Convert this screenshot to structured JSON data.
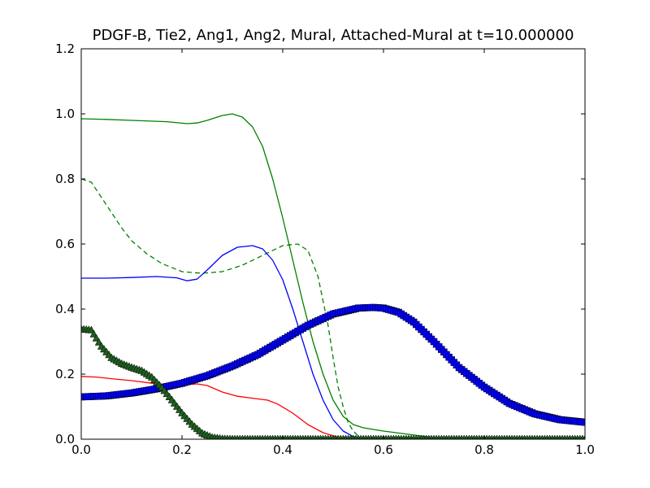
{
  "chart_data": {
    "type": "line",
    "title": "PDGF-B, Tie2, Ang1, Ang2, Mural, Attached-Mural at t=10.000000",
    "xlabel": "",
    "ylabel": "",
    "xlim": [
      0.0,
      1.0
    ],
    "ylim": [
      0.0,
      1.2
    ],
    "xticks": [
      "0.0",
      "0.2",
      "0.4",
      "0.6",
      "0.8",
      "1.0"
    ],
    "yticks": [
      "0.0",
      "0.2",
      "0.4",
      "0.6",
      "0.8",
      "1.0",
      "1.2"
    ],
    "grid": false,
    "legend": "none",
    "series": [
      {
        "color": "#008000",
        "style": "solid",
        "marker": "none",
        "x": [
          0.0,
          0.05,
          0.1,
          0.17,
          0.21,
          0.23,
          0.25,
          0.28,
          0.3,
          0.32,
          0.34,
          0.36,
          0.38,
          0.4,
          0.42,
          0.44,
          0.46,
          0.48,
          0.5,
          0.52,
          0.54,
          0.56,
          0.6,
          0.65,
          0.7,
          0.8,
          0.9,
          1.0
        ],
        "y": [
          0.985,
          0.983,
          0.98,
          0.976,
          0.97,
          0.972,
          0.98,
          0.995,
          1.0,
          0.99,
          0.96,
          0.9,
          0.8,
          0.68,
          0.55,
          0.42,
          0.3,
          0.2,
          0.12,
          0.07,
          0.045,
          0.035,
          0.025,
          0.015,
          0.005,
          0.001,
          0.0,
          0.0
        ]
      },
      {
        "color": "#008000",
        "style": "dashed",
        "marker": "none",
        "x": [
          0.0,
          0.02,
          0.05,
          0.08,
          0.1,
          0.13,
          0.16,
          0.2,
          0.24,
          0.28,
          0.32,
          0.36,
          0.4,
          0.43,
          0.45,
          0.47,
          0.49,
          0.5,
          0.51,
          0.52,
          0.53,
          0.54,
          0.55
        ],
        "y": [
          0.8,
          0.79,
          0.72,
          0.65,
          0.61,
          0.57,
          0.54,
          0.515,
          0.51,
          0.515,
          0.535,
          0.565,
          0.595,
          0.6,
          0.58,
          0.5,
          0.35,
          0.25,
          0.16,
          0.1,
          0.05,
          0.025,
          0.01
        ]
      },
      {
        "color": "#0000ff",
        "style": "solid",
        "marker": "none",
        "x": [
          0.0,
          0.05,
          0.1,
          0.15,
          0.19,
          0.21,
          0.23,
          0.25,
          0.28,
          0.31,
          0.34,
          0.36,
          0.38,
          0.4,
          0.42,
          0.44,
          0.46,
          0.48,
          0.5,
          0.52,
          0.54,
          0.56
        ],
        "y": [
          0.495,
          0.495,
          0.497,
          0.5,
          0.496,
          0.487,
          0.492,
          0.52,
          0.565,
          0.59,
          0.595,
          0.585,
          0.55,
          0.49,
          0.4,
          0.3,
          0.2,
          0.12,
          0.06,
          0.025,
          0.008,
          0.002
        ]
      },
      {
        "color": "#ff0000",
        "style": "solid",
        "marker": "none",
        "x": [
          0.0,
          0.03,
          0.06,
          0.1,
          0.14,
          0.18,
          0.21,
          0.23,
          0.25,
          0.28,
          0.31,
          0.34,
          0.37,
          0.39,
          0.42,
          0.45,
          0.48,
          0.51,
          0.53,
          0.55
        ],
        "y": [
          0.193,
          0.191,
          0.186,
          0.18,
          0.172,
          0.166,
          0.168,
          0.17,
          0.165,
          0.145,
          0.132,
          0.126,
          0.12,
          0.108,
          0.08,
          0.045,
          0.02,
          0.006,
          0.001,
          0.0
        ]
      },
      {
        "color": "#0000ff",
        "style": "solid",
        "marker": "square",
        "markerColor": "#0000ff",
        "x": [
          0.0,
          0.05,
          0.1,
          0.15,
          0.2,
          0.25,
          0.3,
          0.35,
          0.4,
          0.45,
          0.5,
          0.55,
          0.58,
          0.6,
          0.63,
          0.66,
          0.7,
          0.75,
          0.8,
          0.85,
          0.9,
          0.95,
          1.0
        ],
        "y": [
          0.13,
          0.133,
          0.142,
          0.155,
          0.172,
          0.195,
          0.225,
          0.26,
          0.305,
          0.35,
          0.385,
          0.403,
          0.405,
          0.403,
          0.39,
          0.36,
          0.3,
          0.22,
          0.16,
          0.11,
          0.078,
          0.06,
          0.052
        ]
      },
      {
        "color": "#008000",
        "style": "solid",
        "marker": "triangle",
        "markerColor": "#1f5f1f",
        "x": [
          0.0,
          0.02,
          0.04,
          0.06,
          0.08,
          0.1,
          0.12,
          0.14,
          0.16,
          0.18,
          0.2,
          0.22,
          0.24,
          0.26,
          0.28,
          0.3,
          0.4,
          0.5,
          0.6,
          0.7,
          0.8,
          0.9,
          1.0
        ],
        "y": [
          0.338,
          0.335,
          0.285,
          0.25,
          0.232,
          0.22,
          0.21,
          0.19,
          0.158,
          0.12,
          0.08,
          0.045,
          0.018,
          0.005,
          0.001,
          0.0,
          0.0,
          0.0,
          0.0,
          0.0,
          0.0,
          0.0,
          0.0
        ]
      }
    ]
  }
}
